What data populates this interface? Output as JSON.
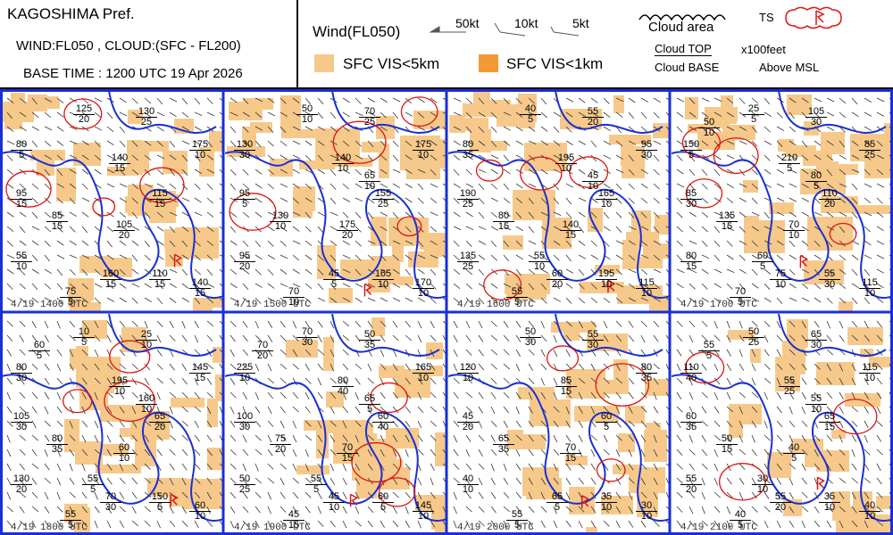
{
  "header": {
    "title": "KAGOSHIMA Pref.",
    "subtitle": "WIND:FL050 , CLOUD:(SFC - FL200)",
    "base_time": "BASE TIME : 1200 UTC 19 Apr 2026"
  },
  "legend": {
    "wind_label": "Wind(FL050)",
    "wind_50": "50kt",
    "wind_10": "10kt",
    "wind_5": "5kt",
    "vis5_label": "SFC VIS<5km",
    "vis1_label": "SFC VIS<1km",
    "cloud_area": "Cloud area",
    "cloud_top": "Cloud TOP",
    "cloud_base": "Cloud BASE",
    "units": "x100feet",
    "msl": "Above MSL",
    "ts": "TS"
  },
  "colors": {
    "vis5": "#f6c98b",
    "vis1": "#f39a36",
    "coast": "#1a2fd6",
    "cloud": "#e0140f",
    "frame": "#1a2fd6"
  },
  "panels": [
    {
      "time": "4/19  1400  UTC",
      "clouds": [
        [
          "125",
          "20"
        ],
        [
          "130",
          "25"
        ],
        [
          "80",
          "5"
        ],
        [
          "175",
          "10"
        ],
        [
          "140",
          "15"
        ],
        [
          "95",
          "15"
        ],
        [
          "115",
          "15"
        ],
        [
          "85",
          "15"
        ],
        [
          "105",
          "20"
        ],
        [
          "55",
          "10"
        ],
        [
          "160",
          "15"
        ],
        [
          "110",
          "15"
        ],
        [
          "75",
          "5"
        ],
        [
          "140",
          "15"
        ]
      ]
    },
    {
      "time": "4/19  1500  UTC",
      "clouds": [
        [
          "50",
          "10"
        ],
        [
          "70",
          "25"
        ],
        [
          "130",
          "30"
        ],
        [
          "175",
          "10"
        ],
        [
          "140",
          "10"
        ],
        [
          "95",
          "5"
        ],
        [
          "155",
          "25"
        ],
        [
          "130",
          "10"
        ],
        [
          "175",
          "20"
        ],
        [
          "95",
          "20"
        ],
        [
          "45",
          "5"
        ],
        [
          "165",
          "10"
        ],
        [
          "70",
          "10"
        ],
        [
          "170",
          "10"
        ],
        [
          "65",
          "10"
        ]
      ]
    },
    {
      "time": "4/19  1600  UTC",
      "clouds": [
        [
          "40",
          "5"
        ],
        [
          "55",
          "20"
        ],
        [
          "80",
          "35"
        ],
        [
          "95",
          "30"
        ],
        [
          "195",
          "10"
        ],
        [
          "190",
          "25"
        ],
        [
          "165",
          "10"
        ],
        [
          "80",
          "15"
        ],
        [
          "140",
          "15"
        ],
        [
          "135",
          "25"
        ],
        [
          "60",
          "20"
        ],
        [
          "195",
          "10"
        ],
        [
          "55",
          "5"
        ],
        [
          "115",
          "10"
        ],
        [
          "45",
          "10"
        ],
        [
          "55",
          "10"
        ]
      ]
    },
    {
      "time": "4/19  1700  UTC",
      "clouds": [
        [
          "25",
          "5"
        ],
        [
          "105",
          "30"
        ],
        [
          "150",
          "5"
        ],
        [
          "85",
          "25"
        ],
        [
          "210",
          "5"
        ],
        [
          "85",
          "30"
        ],
        [
          "110",
          "20"
        ],
        [
          "135",
          "15"
        ],
        [
          "70",
          "10"
        ],
        [
          "80",
          "15"
        ],
        [
          "75",
          "10"
        ],
        [
          "55",
          "30"
        ],
        [
          "70",
          "5"
        ],
        [
          "115",
          "10"
        ],
        [
          "80",
          "5"
        ],
        [
          "60",
          "5"
        ],
        [
          "50",
          "10"
        ]
      ]
    },
    {
      "time": "4/19  1800  UTC",
      "clouds": [
        [
          "10",
          "5"
        ],
        [
          "25",
          "10"
        ],
        [
          "80",
          "30"
        ],
        [
          "145",
          "15"
        ],
        [
          "195",
          "10"
        ],
        [
          "105",
          "30"
        ],
        [
          "65",
          "20"
        ],
        [
          "80",
          "35"
        ],
        [
          "60",
          "10"
        ],
        [
          "130",
          "20"
        ],
        [
          "70",
          "30"
        ],
        [
          "150",
          "5"
        ],
        [
          "55",
          "5"
        ],
        [
          "60",
          "10"
        ],
        [
          "160",
          "10"
        ],
        [
          "55",
          "5"
        ],
        [
          "60",
          "5"
        ]
      ]
    },
    {
      "time": "4/19  1900  UTC",
      "clouds": [
        [
          "70",
          "30"
        ],
        [
          "50",
          "35"
        ],
        [
          "225",
          "10"
        ],
        [
          "165",
          "10"
        ],
        [
          "80",
          "40"
        ],
        [
          "100",
          "30"
        ],
        [
          "60",
          "40"
        ],
        [
          "75",
          "20"
        ],
        [
          "70",
          "15"
        ],
        [
          "50",
          "25"
        ],
        [
          "45",
          "10"
        ],
        [
          "60",
          "5"
        ],
        [
          "45",
          "15"
        ],
        [
          "145",
          "10"
        ],
        [
          "65",
          "5"
        ],
        [
          "55",
          "5"
        ],
        [
          "70",
          "20"
        ]
      ]
    },
    {
      "time": "4/19  2000  UTC",
      "clouds": [
        [
          "50",
          "30"
        ],
        [
          "55",
          "30"
        ],
        [
          "120",
          "10"
        ],
        [
          "80",
          "35"
        ],
        [
          "85",
          "15"
        ],
        [
          "45",
          "20"
        ],
        [
          "60",
          "5"
        ],
        [
          "65",
          "35"
        ],
        [
          "70",
          "15"
        ],
        [
          "40",
          "10"
        ],
        [
          "65",
          "5"
        ],
        [
          "35",
          "10"
        ],
        [
          "55",
          "5"
        ],
        [
          "30",
          "10"
        ]
      ]
    },
    {
      "time": "4/19  2100  UTC",
      "clouds": [
        [
          "50",
          "25"
        ],
        [
          "65",
          "30"
        ],
        [
          "110",
          "40"
        ],
        [
          "115",
          "10"
        ],
        [
          "55",
          "25"
        ],
        [
          "60",
          "35"
        ],
        [
          "65",
          "15"
        ],
        [
          "50",
          "15"
        ],
        [
          "40",
          "5"
        ],
        [
          "55",
          "20"
        ],
        [
          "55",
          "20"
        ],
        [
          "35",
          "10"
        ],
        [
          "40",
          "5"
        ],
        [
          "40",
          "10"
        ],
        [
          "55",
          "10"
        ],
        [
          "30",
          "10"
        ],
        [
          "55",
          "5"
        ]
      ]
    }
  ]
}
